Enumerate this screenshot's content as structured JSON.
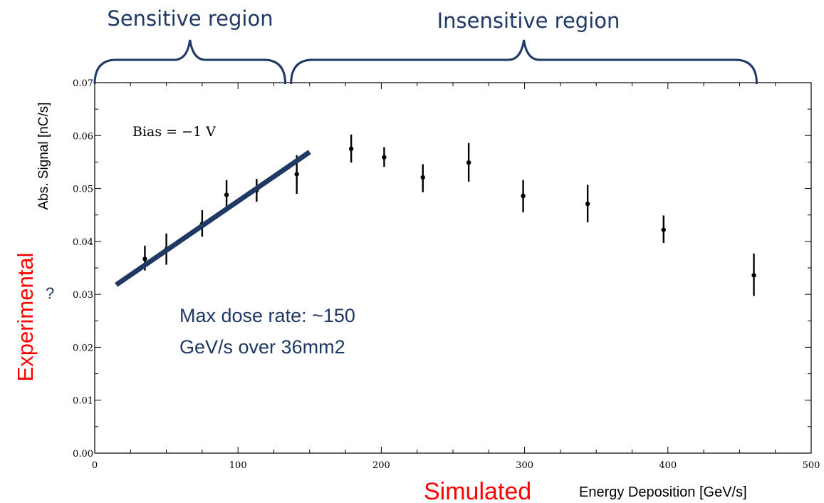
{
  "chart_data": {
    "type": "scatter",
    "xlabel": "Energy Deposition [GeV/s]",
    "ylabel": "Abs. Signal [nC/s]",
    "xlim": [
      0,
      500
    ],
    "ylim": [
      0,
      0.07
    ],
    "xticks": [
      0,
      100,
      200,
      300,
      400,
      500
    ],
    "xtick_labels": [
      "0",
      "100",
      "200",
      "300",
      "400",
      "500"
    ],
    "yticks": [
      0,
      0.01,
      0.02,
      0.03,
      0.04,
      0.05,
      0.06,
      0.07
    ],
    "ytick_labels": [
      "0.00",
      "0.01",
      "0.02",
      "0.03",
      "0.04",
      "0.05",
      "0.06",
      "0.07"
    ],
    "grid": false,
    "points": [
      {
        "x": 35,
        "y": 0.0367,
        "yerr_low": 0.0345,
        "yerr_high": 0.0392
      },
      {
        "x": 50,
        "y": 0.0385,
        "yerr_low": 0.0356,
        "yerr_high": 0.0415
      },
      {
        "x": 75,
        "y": 0.0433,
        "yerr_low": 0.0409,
        "yerr_high": 0.0459
      },
      {
        "x": 92,
        "y": 0.0488,
        "yerr_low": 0.0458,
        "yerr_high": 0.0516
      },
      {
        "x": 113,
        "y": 0.0497,
        "yerr_low": 0.0475,
        "yerr_high": 0.0518
      },
      {
        "x": 141,
        "y": 0.0527,
        "yerr_low": 0.049,
        "yerr_high": 0.0563
      },
      {
        "x": 179,
        "y": 0.0575,
        "yerr_low": 0.0549,
        "yerr_high": 0.0602
      },
      {
        "x": 202,
        "y": 0.0559,
        "yerr_low": 0.0541,
        "yerr_high": 0.0578
      },
      {
        "x": 229,
        "y": 0.0521,
        "yerr_low": 0.0493,
        "yerr_high": 0.0546
      },
      {
        "x": 261,
        "y": 0.0549,
        "yerr_low": 0.0513,
        "yerr_high": 0.0586
      },
      {
        "x": 299,
        "y": 0.0486,
        "yerr_low": 0.0455,
        "yerr_high": 0.0516
      },
      {
        "x": 344,
        "y": 0.0471,
        "yerr_low": 0.0436,
        "yerr_high": 0.0507
      },
      {
        "x": 397,
        "y": 0.0422,
        "yerr_low": 0.0397,
        "yerr_high": 0.0449
      },
      {
        "x": 460,
        "y": 0.0336,
        "yerr_low": 0.0297,
        "yerr_high": 0.0377
      }
    ],
    "fit_line": {
      "x": [
        15,
        150
      ],
      "y": [
        0.0318,
        0.0569
      ],
      "color": "#1f3864"
    },
    "inset_text": "Bias = −1 V",
    "regions": [
      {
        "label": "Sensitive region",
        "x_start": 0,
        "x_end": 133
      },
      {
        "label": "Insensitive region",
        "x_start": 137,
        "x_end": 462
      }
    ]
  },
  "annotations": {
    "dose_rate_line1": "Max dose rate: ~150",
    "dose_rate_line2": "GeV/s over 36mm2",
    "experimental_label": "Experimental",
    "question_mark": "?",
    "simulated_label": "Simulated"
  },
  "colors": {
    "annotation_blue": "#1f3864",
    "annotation_red": "#ff0000",
    "marker": "#000000"
  }
}
